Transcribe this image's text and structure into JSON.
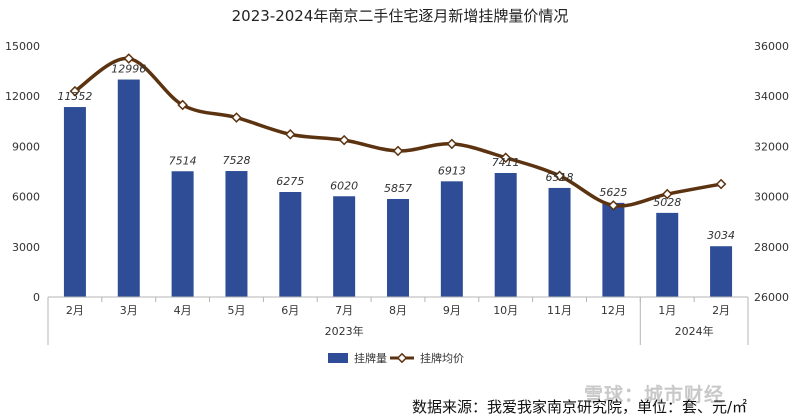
{
  "chart_data": {
    "type": "bar+line",
    "title": "2023-2024年南京二手住宅逐月新增挂牌量价情况",
    "categories": [
      "2月",
      "3月",
      "4月",
      "5月",
      "6月",
      "7月",
      "8月",
      "9月",
      "10月",
      "11月",
      "12月",
      "1月",
      "2月"
    ],
    "year_groups": [
      {
        "label": "2023年",
        "from": 0,
        "to": 10
      },
      {
        "label": "2024年",
        "from": 11,
        "to": 12
      }
    ],
    "series": [
      {
        "name": "挂牌量",
        "type": "bar",
        "axis": "left",
        "color": "#2e4d96",
        "values": [
          11352,
          12996,
          7514,
          7528,
          6275,
          6020,
          5857,
          6913,
          7411,
          6518,
          5625,
          5028,
          3034
        ],
        "labels": [
          "11352",
          "12996",
          "7514",
          "7528",
          "6275",
          "6020",
          "5857",
          "6913",
          "7411",
          "6518",
          "5625",
          "5028",
          "3034"
        ]
      },
      {
        "name": "挂牌均价",
        "type": "line",
        "axis": "right",
        "color": "#5c3310",
        "values": [
          34200,
          35500,
          33650,
          33150,
          32480,
          32250,
          31820,
          32100,
          31550,
          30830,
          29650,
          30100,
          30500
        ]
      }
    ],
    "y_left": {
      "min": 0,
      "max": 15000,
      "ticks": [
        "0",
        "3000",
        "6000",
        "9000",
        "12000",
        "15000"
      ]
    },
    "y_right": {
      "min": 26000,
      "max": 36000,
      "ticks": [
        "26000",
        "28000",
        "30000",
        "32000",
        "34000",
        "36000"
      ]
    },
    "grid": false,
    "legend": "bottom-center"
  },
  "footer": {
    "source": "数据来源：我爱我家南京研究院，单位：套、元/㎡",
    "watermark": "雪球：城市财经"
  }
}
